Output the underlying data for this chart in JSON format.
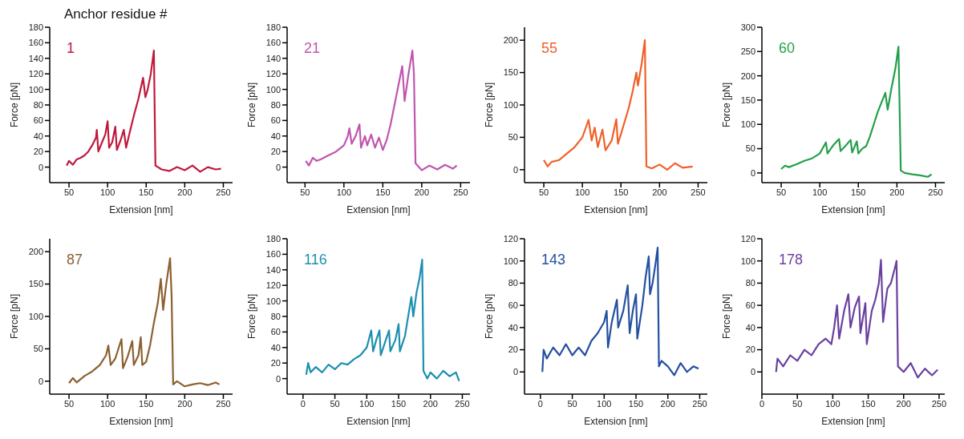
{
  "chart_data": [
    {
      "type": "line",
      "title": "Anchor residue #",
      "xlabel": "Extension [nm]",
      "ylabel": "Force [pN]",
      "marker": "none",
      "xlim": [
        25,
        262
      ],
      "xticks": [
        50,
        100,
        150,
        200,
        250
      ],
      "ylim": [
        -20,
        180
      ],
      "yticks": [
        0,
        20,
        40,
        60,
        80,
        100,
        120,
        140,
        160,
        180
      ],
      "series": [
        {
          "name": "1",
          "color": "#c0183c",
          "x": [
            47,
            50,
            55,
            60,
            65,
            70,
            75,
            80,
            85,
            86,
            88,
            92,
            97,
            100,
            102,
            106,
            110,
            112,
            117,
            121,
            124,
            130,
            135,
            140,
            146,
            149,
            152,
            156,
            160,
            162,
            170,
            180,
            190,
            200,
            210,
            220,
            230,
            240,
            247
          ],
          "values": [
            2,
            8,
            3,
            10,
            12,
            15,
            20,
            28,
            38,
            48,
            20,
            30,
            42,
            59,
            25,
            32,
            52,
            22,
            35,
            48,
            25,
            50,
            70,
            88,
            115,
            90,
            100,
            120,
            150,
            2,
            -3,
            -5,
            0,
            -4,
            2,
            -6,
            0,
            -3,
            -2
          ]
        }
      ]
    },
    {
      "type": "line",
      "xlabel": "Extension [nm]",
      "ylabel": "Force [pN]",
      "marker": "none",
      "xlim": [
        27,
        262
      ],
      "xticks": [
        50,
        100,
        150,
        200,
        250
      ],
      "ylim": [
        -20,
        180
      ],
      "yticks": [
        0,
        20,
        40,
        60,
        80,
        100,
        120,
        140,
        160,
        180
      ],
      "series": [
        {
          "name": "21",
          "color": "#c055b0",
          "x": [
            51,
            55,
            60,
            65,
            70,
            80,
            90,
            100,
            105,
            107,
            110,
            115,
            120,
            122,
            127,
            130,
            135,
            140,
            145,
            150,
            155,
            160,
            165,
            170,
            175,
            178,
            183,
            188,
            190,
            192,
            200,
            210,
            220,
            230,
            240,
            245
          ],
          "values": [
            8,
            2,
            12,
            8,
            10,
            15,
            20,
            28,
            40,
            50,
            30,
            40,
            55,
            25,
            40,
            28,
            42,
            25,
            38,
            22,
            35,
            55,
            80,
            105,
            130,
            85,
            120,
            150,
            120,
            5,
            -4,
            2,
            -3,
            3,
            -2,
            2
          ]
        }
      ]
    },
    {
      "type": "line",
      "xlabel": "Extension [nm]",
      "ylabel": "Force [pN]",
      "marker": "none",
      "xlim": [
        25,
        262
      ],
      "xticks": [
        50,
        100,
        150,
        200,
        250
      ],
      "ylim": [
        -20,
        220
      ],
      "yticks": [
        0,
        50,
        100,
        150,
        200
      ],
      "series": [
        {
          "name": "55",
          "color": "#f0602a",
          "x": [
            50,
            55,
            60,
            70,
            80,
            90,
            100,
            106,
            108,
            112,
            116,
            120,
            126,
            130,
            138,
            144,
            146,
            150,
            155,
            160,
            165,
            170,
            172,
            177,
            181,
            183,
            190,
            200,
            210,
            220,
            230,
            243
          ],
          "values": [
            15,
            5,
            12,
            15,
            25,
            35,
            50,
            70,
            77,
            45,
            65,
            35,
            62,
            30,
            45,
            78,
            40,
            55,
            75,
            95,
            120,
            150,
            130,
            165,
            200,
            5,
            2,
            8,
            0,
            10,
            3,
            5
          ]
        }
      ]
    },
    {
      "type": "line",
      "xlabel": "Extension [nm]",
      "ylabel": "Force [pN]",
      "marker": "none",
      "xlim": [
        25,
        262
      ],
      "xticks": [
        50,
        100,
        150,
        200,
        250
      ],
      "ylim": [
        -20,
        300
      ],
      "yticks": [
        0,
        50,
        100,
        150,
        200,
        250,
        300
      ],
      "series": [
        {
          "name": "60",
          "color": "#22a04a",
          "x": [
            50,
            55,
            60,
            70,
            80,
            90,
            100,
            108,
            110,
            118,
            125,
            127,
            133,
            140,
            142,
            148,
            150,
            155,
            160,
            165,
            170,
            175,
            180,
            185,
            188,
            193,
            198,
            202,
            205,
            210,
            220,
            230,
            240,
            245
          ],
          "values": [
            8,
            15,
            12,
            18,
            25,
            30,
            40,
            63,
            40,
            58,
            70,
            45,
            55,
            68,
            42,
            65,
            40,
            50,
            55,
            75,
            100,
            125,
            145,
            165,
            130,
            175,
            215,
            260,
            5,
            0,
            -3,
            -5,
            -8,
            -3
          ]
        }
      ]
    },
    {
      "type": "line",
      "xlabel": "Extension [nm]",
      "ylabel": "Force [pN]",
      "marker": "none",
      "xlim": [
        25,
        262
      ],
      "xticks": [
        50,
        100,
        150,
        200,
        250
      ],
      "ylim": [
        -20,
        220
      ],
      "yticks": [
        0,
        50,
        100,
        150,
        200
      ],
      "series": [
        {
          "name": "87",
          "color": "#8b6030",
          "x": [
            50,
            55,
            60,
            70,
            80,
            90,
            98,
            101,
            104,
            110,
            118,
            120,
            126,
            132,
            134,
            140,
            143,
            145,
            150,
            155,
            160,
            165,
            169,
            172,
            176,
            181,
            183,
            185,
            190,
            200,
            210,
            220,
            230,
            240,
            245
          ],
          "values": [
            -3,
            5,
            -2,
            8,
            15,
            25,
            40,
            55,
            25,
            35,
            65,
            20,
            38,
            62,
            25,
            40,
            68,
            25,
            30,
            55,
            90,
            120,
            158,
            110,
            150,
            190,
            130,
            -5,
            0,
            -8,
            -5,
            -3,
            -6,
            -2,
            -5
          ]
        }
      ]
    },
    {
      "type": "line",
      "xlabel": "Extension [nm]",
      "ylabel": "Force [pN]",
      "marker": "none",
      "xlim": [
        -25,
        262
      ],
      "xticks": [
        0,
        50,
        100,
        150,
        200,
        250
      ],
      "ylim": [
        -20,
        180
      ],
      "yticks": [
        0,
        20,
        40,
        60,
        80,
        100,
        120,
        140,
        160,
        180
      ],
      "series": [
        {
          "name": "116",
          "color": "#1c8fb0",
          "x": [
            5,
            8,
            12,
            20,
            30,
            40,
            50,
            60,
            70,
            80,
            90,
            100,
            107,
            110,
            115,
            120,
            122,
            130,
            135,
            137,
            145,
            150,
            152,
            160,
            165,
            170,
            173,
            178,
            183,
            187,
            189,
            195,
            200,
            210,
            220,
            230,
            240,
            245
          ],
          "values": [
            5,
            20,
            8,
            15,
            8,
            18,
            12,
            20,
            18,
            25,
            30,
            40,
            62,
            35,
            50,
            62,
            30,
            50,
            62,
            35,
            50,
            70,
            35,
            55,
            80,
            105,
            80,
            110,
            130,
            153,
            10,
            0,
            8,
            0,
            10,
            3,
            8,
            -3
          ]
        }
      ]
    },
    {
      "type": "line",
      "xlabel": "Extension [nm]",
      "ylabel": "Force [pN]",
      "marker": "none",
      "xlim": [
        -25,
        262
      ],
      "xticks": [
        0,
        50,
        100,
        150,
        200,
        250
      ],
      "ylim": [
        -20,
        120
      ],
      "yticks": [
        0,
        20,
        40,
        60,
        80,
        100,
        120
      ],
      "series": [
        {
          "name": "143",
          "color": "#2450a0",
          "x": [
            3,
            5,
            10,
            20,
            30,
            40,
            50,
            60,
            70,
            80,
            90,
            100,
            104,
            106,
            112,
            120,
            122,
            130,
            137,
            140,
            145,
            150,
            152,
            160,
            165,
            170,
            172,
            176,
            180,
            184,
            186,
            190,
            200,
            210,
            220,
            230,
            240,
            248
          ],
          "values": [
            0,
            20,
            12,
            22,
            15,
            25,
            15,
            22,
            15,
            28,
            35,
            45,
            55,
            22,
            45,
            65,
            40,
            55,
            78,
            35,
            55,
            70,
            30,
            60,
            85,
            104,
            70,
            80,
            95,
            112,
            5,
            10,
            5,
            -3,
            8,
            0,
            5,
            3
          ]
        }
      ]
    },
    {
      "type": "line",
      "xlabel": "Extension [nm]",
      "ylabel": "Force [pN]",
      "marker": "none",
      "xlim": [
        0,
        258
      ],
      "xticks": [
        0,
        50,
        100,
        150,
        200,
        250
      ],
      "ylim": [
        -20,
        120
      ],
      "yticks": [
        0,
        20,
        40,
        60,
        80,
        100,
        120
      ],
      "series": [
        {
          "name": "178",
          "color": "#6a40a0",
          "x": [
            20,
            22,
            30,
            40,
            50,
            60,
            70,
            80,
            90,
            98,
            102,
            106,
            109,
            116,
            122,
            125,
            131,
            137,
            139,
            146,
            148,
            155,
            160,
            165,
            168,
            171,
            177,
            182,
            187,
            190,
            192,
            200,
            210,
            220,
            230,
            240,
            248
          ],
          "values": [
            0,
            12,
            5,
            15,
            10,
            20,
            15,
            25,
            30,
            25,
            40,
            60,
            30,
            55,
            70,
            40,
            58,
            68,
            35,
            62,
            25,
            55,
            65,
            80,
            101,
            45,
            75,
            80,
            92,
            100,
            5,
            0,
            8,
            -5,
            3,
            -3,
            2
          ]
        }
      ]
    }
  ]
}
